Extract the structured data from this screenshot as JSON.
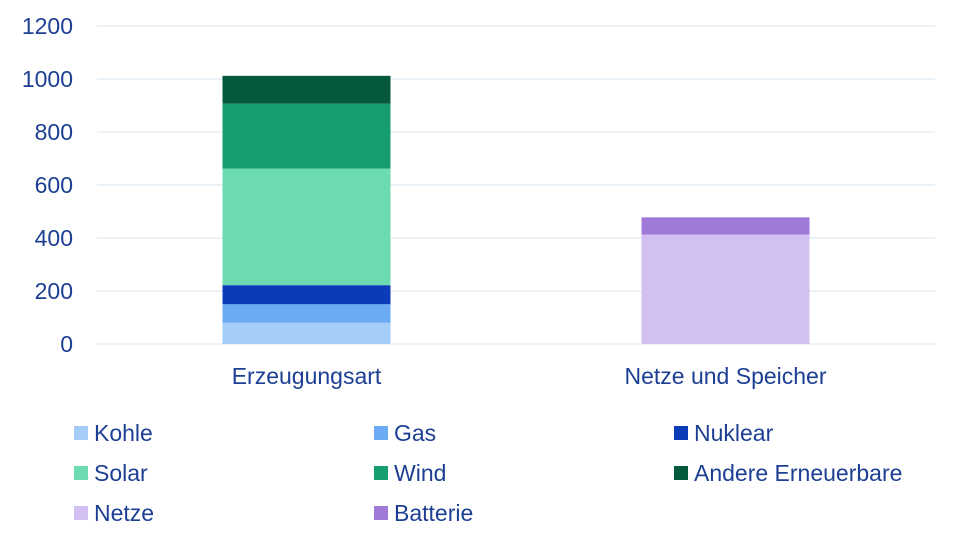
{
  "chart_data": {
    "type": "bar",
    "stacked": true,
    "categories": [
      "Erzeugungsart",
      "Netze und Speicher"
    ],
    "series": [
      {
        "name": "Kohle",
        "color": "#a4cdf7",
        "values": [
          80,
          0
        ]
      },
      {
        "name": "Gas",
        "color": "#6aabf4",
        "values": [
          70,
          0
        ]
      },
      {
        "name": "Nuklear",
        "color": "#0a3cb8",
        "values": [
          72,
          0
        ]
      },
      {
        "name": "Solar",
        "color": "#6cdbb2",
        "values": [
          440,
          0
        ]
      },
      {
        "name": "Wind",
        "color": "#179e70",
        "values": [
          245,
          0
        ]
      },
      {
        "name": "Andere Erneuerbare",
        "color": "#04583e",
        "values": [
          105,
          0
        ]
      },
      {
        "name": "Netze",
        "color": "#d3c0f2",
        "values": [
          0,
          413
        ]
      },
      {
        "name": "Batterie",
        "color": "#a07ad9",
        "values": [
          0,
          65
        ]
      }
    ],
    "yticks": [
      0,
      200,
      400,
      600,
      800,
      1000,
      1200
    ],
    "ylim": [
      0,
      1200
    ],
    "grid": true,
    "legend_position": "bottom",
    "title": "",
    "xlabel": "",
    "ylabel": ""
  }
}
